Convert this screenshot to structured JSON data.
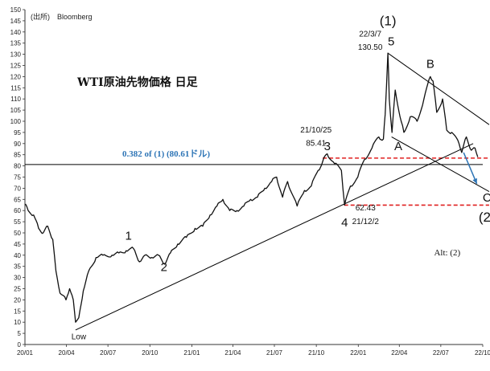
{
  "source": "(出所)　Bloomberg",
  "colors": {
    "price": "#111111",
    "fib": "#2E75B6",
    "dashed": "#E02020",
    "arrow": "#2E75B6",
    "axis": "#333333"
  },
  "chart_data": {
    "type": "line",
    "title": "WTI原油先物価格 日足",
    "xlabel": "",
    "ylabel": "",
    "ylim": [
      0,
      150
    ],
    "xlim": [
      "2020-01",
      "2022-10"
    ],
    "yticks": [
      0,
      5,
      10,
      15,
      20,
      25,
      30,
      35,
      40,
      45,
      50,
      55,
      60,
      65,
      70,
      75,
      80,
      85,
      90,
      95,
      100,
      105,
      110,
      115,
      120,
      125,
      130,
      135,
      140,
      145,
      150
    ],
    "xticks": [
      "20/01",
      "20/04",
      "20/07",
      "20/10",
      "21/01",
      "21/04",
      "21/07",
      "21/10",
      "22/01",
      "22/04",
      "22/07",
      "22/10"
    ],
    "series": [
      {
        "points": [
          [
            "2020-01-02",
            63
          ],
          [
            "2020-01-08",
            60
          ],
          [
            "2020-01-20",
            58
          ],
          [
            "2020-01-31",
            52
          ],
          [
            "2020-02-10",
            50
          ],
          [
            "2020-02-20",
            53
          ],
          [
            "2020-03-02",
            47
          ],
          [
            "2020-03-09",
            33
          ],
          [
            "2020-03-18",
            23
          ],
          [
            "2020-03-31",
            20
          ],
          [
            "2020-04-08",
            25
          ],
          [
            "2020-04-16",
            20
          ],
          [
            "2020-04-21",
            10
          ],
          [
            "2020-04-28",
            12
          ],
          [
            "2020-05-08",
            24
          ],
          [
            "2020-05-20",
            33
          ],
          [
            "2020-06-05",
            39
          ],
          [
            "2020-06-20",
            40
          ],
          [
            "2020-07-10",
            40
          ],
          [
            "2020-07-25",
            41
          ],
          [
            "2020-08-10",
            42
          ],
          [
            "2020-08-26",
            43
          ],
          [
            "2020-09-08",
            37
          ],
          [
            "2020-09-20",
            40
          ],
          [
            "2020-10-05",
            39
          ],
          [
            "2020-10-20",
            40
          ],
          [
            "2020-11-02",
            36
          ],
          [
            "2020-11-15",
            41
          ],
          [
            "2020-12-01",
            45
          ],
          [
            "2020-12-20",
            48
          ],
          [
            "2021-01-08",
            52
          ],
          [
            "2021-01-25",
            53
          ],
          [
            "2021-02-10",
            58
          ],
          [
            "2021-02-25",
            62
          ],
          [
            "2021-03-10",
            65
          ],
          [
            "2021-03-25",
            60
          ],
          [
            "2021-04-10",
            60
          ],
          [
            "2021-04-25",
            62
          ],
          [
            "2021-05-10",
            65
          ],
          [
            "2021-05-25",
            66
          ],
          [
            "2021-06-10",
            70
          ],
          [
            "2021-06-25",
            73
          ],
          [
            "2021-07-06",
            75
          ],
          [
            "2021-07-19",
            66
          ],
          [
            "2021-07-30",
            73
          ],
          [
            "2021-08-20",
            62
          ],
          [
            "2021-09-05",
            69
          ],
          [
            "2021-09-20",
            71
          ],
          [
            "2021-10-05",
            78
          ],
          [
            "2021-10-15",
            82
          ],
          [
            "2021-10-25",
            85.41
          ],
          [
            "2021-11-10",
            81
          ],
          [
            "2021-11-25",
            78
          ],
          [
            "2021-12-02",
            62.43
          ],
          [
            "2021-12-15",
            71
          ],
          [
            "2021-12-31",
            75
          ],
          [
            "2022-01-15",
            83
          ],
          [
            "2022-01-31",
            88
          ],
          [
            "2022-02-15",
            93
          ],
          [
            "2022-02-25",
            92
          ],
          [
            "2022-03-01",
            103
          ],
          [
            "2022-03-07",
            130.5
          ],
          [
            "2022-03-10",
            110
          ],
          [
            "2022-03-16",
            95
          ],
          [
            "2022-03-23",
            114
          ],
          [
            "2022-04-05",
            100
          ],
          [
            "2022-04-11",
            95
          ],
          [
            "2022-04-25",
            102
          ],
          [
            "2022-05-10",
            100
          ],
          [
            "2022-05-25",
            110
          ],
          [
            "2022-06-08",
            120
          ],
          [
            "2022-06-14",
            118
          ],
          [
            "2022-06-22",
            104
          ],
          [
            "2022-07-05",
            110
          ],
          [
            "2022-07-14",
            96
          ],
          [
            "2022-07-25",
            95
          ],
          [
            "2022-08-10",
            90
          ],
          [
            "2022-08-16",
            86
          ],
          [
            "2022-08-26",
            93
          ],
          [
            "2022-09-06",
            87
          ],
          [
            "2022-09-14",
            88
          ],
          [
            "2022-09-20",
            84
          ]
        ]
      }
    ],
    "lines": [
      {
        "kind": "solid",
        "y": 80.61,
        "label": "0.382 of (1) (80.61ドル)"
      },
      {
        "kind": "dashed",
        "y": 83.5,
        "from": "2021-10-15",
        "to": "2022-10-15"
      },
      {
        "kind": "dashed",
        "y": 62.43,
        "from": "2021-12-01",
        "to": "2022-10-15"
      },
      {
        "kind": "trend",
        "from": [
          "2020-04-21",
          6.5
        ],
        "to": [
          "2022-09-10",
          90
        ]
      },
      {
        "kind": "channel-upper",
        "from": [
          "2022-03-07",
          130.5
        ],
        "to": [
          "2022-10-15",
          98.5
        ]
      },
      {
        "kind": "channel-lower",
        "from": [
          "2022-03-15",
          93
        ],
        "to": [
          "2022-10-15",
          68.5
        ]
      }
    ],
    "annotations": [
      {
        "text": "Low",
        "x": "2020-04-21",
        "y": 6
      },
      {
        "text": "1",
        "x": "2020-08-15",
        "y": 47
      },
      {
        "text": "2",
        "x": "2020-11-01",
        "y": 33
      },
      {
        "text": "21/10/25",
        "x": "2021-10-25",
        "y": 95
      },
      {
        "text": "85.41",
        "x": "2021-10-25",
        "y": 89
      },
      {
        "text": "3",
        "x": "2021-10-25",
        "y": 87
      },
      {
        "text": "4",
        "x": "2021-12-02",
        "y": 58
      },
      {
        "text": "62.43",
        "x": "2021-12-02",
        "y": 60
      },
      {
        "text": "21/12/2",
        "x": "2021-12-02",
        "y": 54
      },
      {
        "text": "(1)",
        "x": "2022-03-07",
        "y": 143
      },
      {
        "text": "5",
        "x": "2022-03-07",
        "y": 134
      },
      {
        "text": "22/3/7",
        "x": "2022-03-07",
        "y": 138
      },
      {
        "text": "130.50",
        "x": "2022-03-07",
        "y": 132
      },
      {
        "text": "A",
        "x": "2022-03-12",
        "y": 87
      },
      {
        "text": "B",
        "x": "2022-06-08",
        "y": 124
      },
      {
        "text": "C",
        "x": "2022-09-05",
        "y": 64
      },
      {
        "text": "(2)",
        "x": "2022-09-05",
        "y": 55
      },
      {
        "text": "Alt: (2)",
        "x": "2022-07-15",
        "y": 40
      }
    ]
  }
}
